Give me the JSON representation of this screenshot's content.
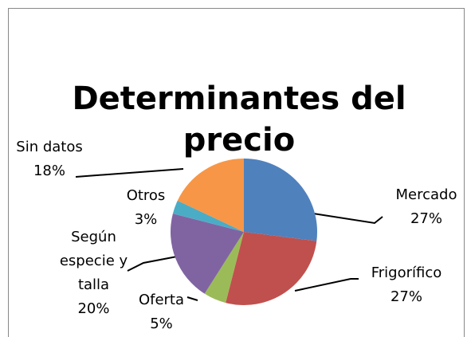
{
  "chart_data": {
    "type": "pie",
    "title": "Determinantes del precio",
    "categories": [
      "Mercado",
      "Frigorífico",
      "Oferta",
      "Según especie y talla",
      "Otros",
      "Sin datos"
    ],
    "values": [
      27,
      27,
      5,
      20,
      3,
      18
    ],
    "value_labels": [
      "27%",
      "27%",
      "5%",
      "20%",
      "3%",
      "18%"
    ],
    "colors": [
      "#4f81bd",
      "#c0504d",
      "#9bbb59",
      "#8064a2",
      "#4bacc6",
      "#f79646"
    ]
  }
}
